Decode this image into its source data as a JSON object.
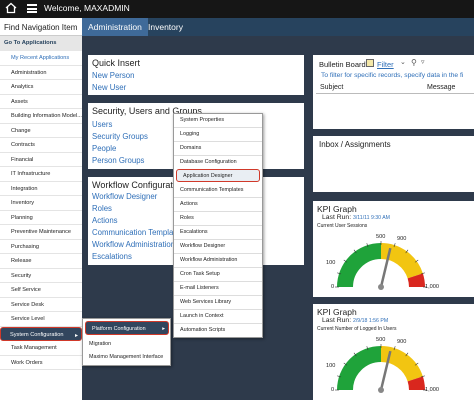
{
  "header": {
    "welcome": "Welcome, MAXADMIN"
  },
  "nav": {
    "title": "Find Navigation Item",
    "goto": "Go To Applications",
    "recent": "My Recent Applications",
    "items": [
      "Administration",
      "Analytics",
      "Assets",
      "Building Information Model...",
      "Change",
      "Contracts",
      "Financial",
      "IT Infrastructure",
      "Integration",
      "Inventory",
      "Planning",
      "Preventive Maintenance",
      "Purchasing",
      "Release",
      "Security",
      "Self Service",
      "Service Desk",
      "Service Level",
      "System Configuration",
      "Task Management",
      "Work Orders"
    ]
  },
  "tabs": [
    "Administration",
    "Inventory"
  ],
  "quick_insert": {
    "title": "Quick Insert",
    "links": [
      "New Person",
      "New User"
    ]
  },
  "security": {
    "title": "Security, Users and Groups",
    "links": [
      "Users",
      "Security Groups",
      "People",
      "Person Groups"
    ]
  },
  "workflow": {
    "title": "Workflow Configuration",
    "links": [
      "Workflow Designer",
      "Roles",
      "Actions",
      "Communication Templates",
      "Workflow Administration",
      "Escalations"
    ]
  },
  "submenu1": [
    "Platform Configuration",
    "Migration",
    "Maximo Management Interface"
  ],
  "submenu2": [
    "System Properties",
    "Logging",
    "Domains",
    "Database Configuration",
    "Application Designer",
    "Communication Templates",
    "Actions",
    "Roles",
    "Escalations",
    "Workflow Designer",
    "Workflow Administration",
    "Cron Task Setup",
    "E-mail Listeners",
    "Web Services Library",
    "Launch in Context",
    "Automation Scripts"
  ],
  "bulletin": {
    "title": "Bulletin Board",
    "filter": "Filter",
    "hint": "To filter for specific records, specify data in the fi",
    "col_subject": "Subject",
    "col_message": "Message"
  },
  "inbox": {
    "title": "Inbox / Assignments"
  },
  "kpi1": {
    "title": "KPI Graph",
    "last_run_label": "Last Run:",
    "last_run": "3/11/11 9:30 AM",
    "metric": "Current User Sessions",
    "tick0": "0",
    "tick100": "100",
    "tick500": "500",
    "tick900": "900",
    "tick1000": "1,000",
    "needle_value": 575
  },
  "kpi2": {
    "title": "KPI Graph",
    "last_run_label": "Last Run:",
    "last_run": "2/9/18 1:56 PM",
    "metric": "Current Number of Logged In Users",
    "tick0": "0",
    "tick100": "100",
    "tick500": "500",
    "tick900": "900",
    "tick1000": "1,000",
    "needle_value": 575
  },
  "colors": {
    "topbar": "#161616",
    "tabbar": "#27435e",
    "tab_active": "#3f6a99",
    "link": "#2f6fb8",
    "highlight": "#d0392a",
    "gauge_green": "#1fa33a",
    "gauge_yellow": "#f2c511",
    "gauge_red": "#d9271e"
  }
}
